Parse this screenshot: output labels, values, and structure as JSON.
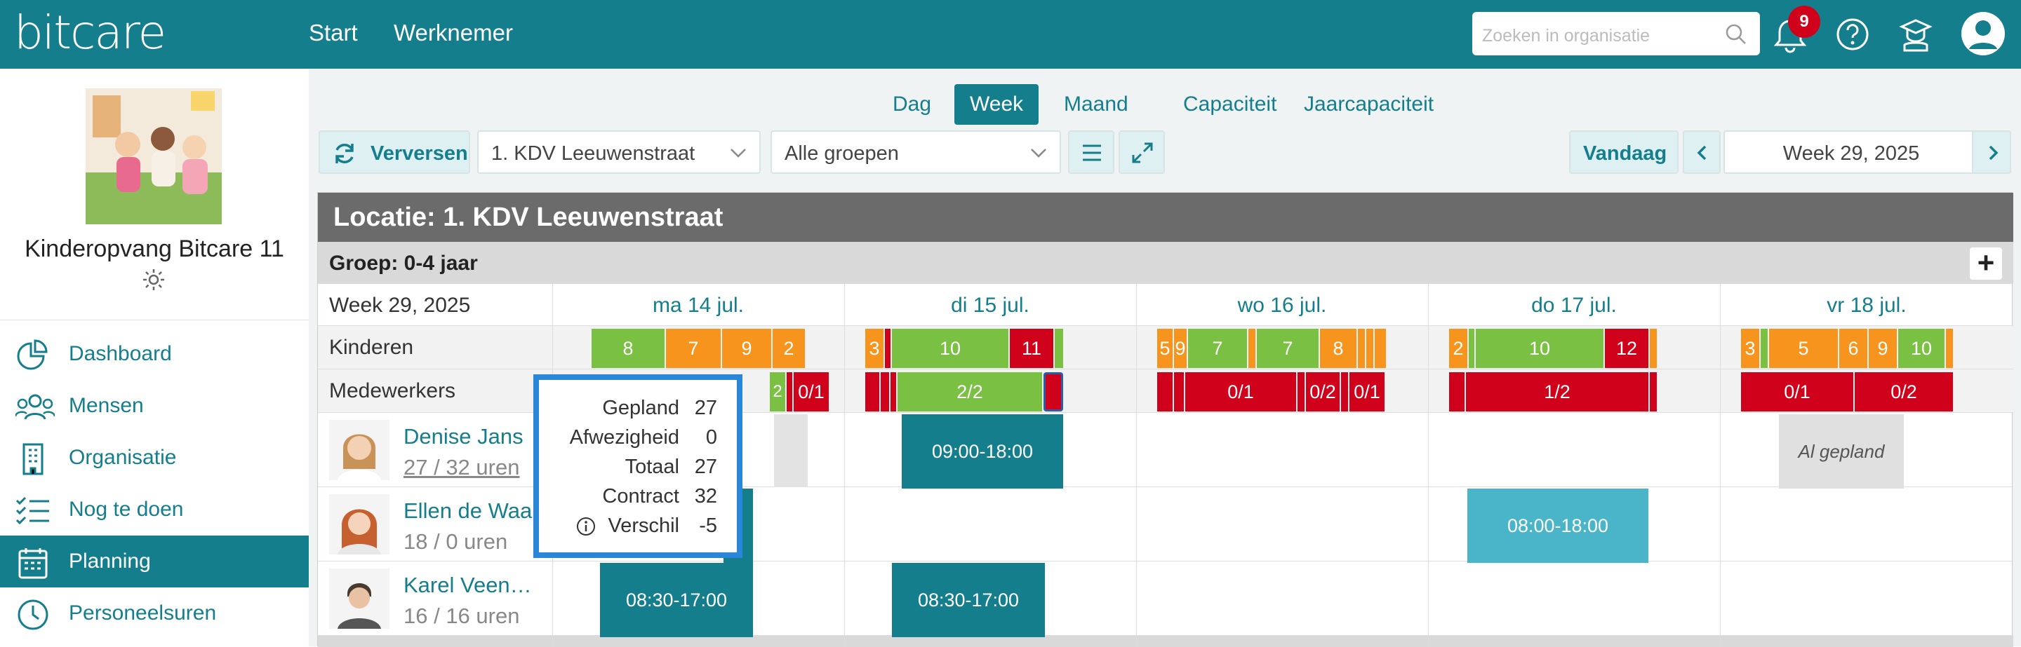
{
  "app": {
    "logo": "bitcare"
  },
  "topnav": {
    "start": "Start",
    "werknemer": "Werknemer"
  },
  "search": {
    "placeholder": "Zoeken in organisatie"
  },
  "notifications": {
    "count": "9"
  },
  "icons": {
    "notifications": "bell-icon",
    "help": "question-circle-icon",
    "training": "graduation-cap-icon",
    "user": "user-avatar-icon",
    "search": "search-icon"
  },
  "sidebar": {
    "org_name": "Kinderopvang Bitcare 11",
    "items": [
      {
        "label": "Dashboard",
        "icon": "pie-chart-icon"
      },
      {
        "label": "Mensen",
        "icon": "people-icon"
      },
      {
        "label": "Organisatie",
        "icon": "building-icon"
      },
      {
        "label": "Nog te doen",
        "icon": "checklist-icon"
      },
      {
        "label": "Planning",
        "icon": "calendar-icon",
        "active": true
      },
      {
        "label": "Personeelsuren",
        "icon": "clock-icon"
      }
    ]
  },
  "view_tabs": [
    "Dag",
    "Week",
    "Maand",
    "Capaciteit",
    "Jaarcapaciteit"
  ],
  "active_tab": "Week",
  "toolbar": {
    "refresh": "Verversen",
    "location": "1. KDV Leeuwenstraat",
    "group": "Alle groepen",
    "today": "Vandaag",
    "week": "Week 29, 2025"
  },
  "planning": {
    "location_title": "Locatie: 1. KDV Leeuwenstraat",
    "group_title": "Groep: 0-4 jaar",
    "add_symbol": "+",
    "week_label": "Week 29, 2025",
    "days": [
      "ma 14 jul.",
      "di 15 jul.",
      "wo 16 jul.",
      "do 17 jul.",
      "vr 18 jul."
    ],
    "row_kinderen": "Kinderen",
    "row_medewerkers": "Medewerkers",
    "kinderen": {
      "ma": [
        "8",
        "7",
        "9",
        "2"
      ],
      "di": [
        "3",
        "10",
        "11"
      ],
      "wo": [
        "5",
        "9",
        "7",
        "7",
        "8"
      ],
      "do": [
        "2",
        "10",
        "12"
      ],
      "vr": [
        "3",
        "5",
        "6",
        "9",
        "10"
      ]
    },
    "medewerkers": {
      "ma": [
        "2",
        "0/1"
      ],
      "di": [
        "2/2"
      ],
      "wo": [
        "0/1",
        "0/2",
        "0/1"
      ],
      "do": [
        "1/2"
      ],
      "vr": [
        "0/1",
        "0/2"
      ]
    },
    "employees": [
      {
        "name": "Denise Jans",
        "hours": "27 / 32 uren",
        "shifts": [
          "09:00-18:00"
        ],
        "note": "Al gepland"
      },
      {
        "name": "Ellen de Waal",
        "hours": "18 / 0 uren",
        "shifts": [
          "08:00-18:00"
        ]
      },
      {
        "name": "Karel Veen…",
        "hours": "16 / 16 uren",
        "shifts": [
          "08:30-17:00",
          "08:30-17:00"
        ]
      }
    ]
  },
  "tooltip": {
    "gepland_label": "Gepland",
    "gepland": "27",
    "afwezigheid_label": "Afwezigheid",
    "afwezigheid": "0",
    "totaal_label": "Totaal",
    "totaal": "27",
    "contract_label": "Contract",
    "contract": "32",
    "verschil_label": "Verschil",
    "verschil": "-5"
  },
  "colors": {
    "primary": "#157e8c",
    "green": "#7ac043",
    "orange": "#f7941e",
    "red": "#d0021b",
    "shift_light": "#4ab5c9"
  }
}
